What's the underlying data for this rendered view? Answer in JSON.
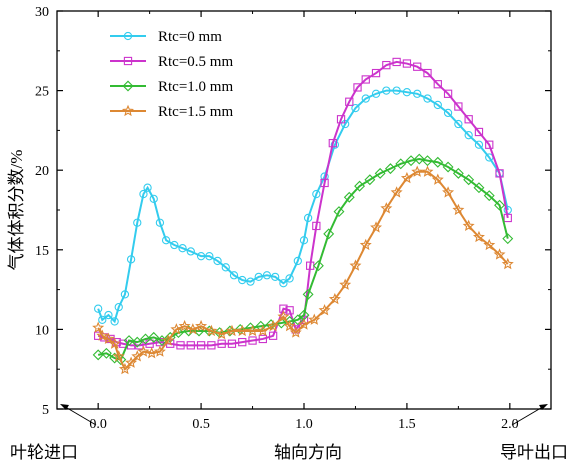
{
  "chart_data": {
    "type": "line",
    "ylabel": "气体体积分数/%",
    "xlabel": "轴向方向",
    "x_left_annotation": "叶轮进口",
    "x_right_annotation": "导叶出口",
    "xlim": [
      -0.2,
      2.2
    ],
    "ylim": [
      5,
      30
    ],
    "xticks": [
      "0.0",
      "0.5",
      "1.0",
      "1.5",
      "2.0"
    ],
    "yticks": [
      "5",
      "10",
      "15",
      "20",
      "25",
      "30"
    ],
    "grid": false,
    "legend_position": "top-left",
    "series": [
      {
        "name": "Rtc=0 mm",
        "color": "#33ccee",
        "marker": "circle",
        "points": [
          [
            0.0,
            11.3
          ],
          [
            0.02,
            10.6
          ],
          [
            0.05,
            10.9
          ],
          [
            0.08,
            10.5
          ],
          [
            0.1,
            11.4
          ],
          [
            0.13,
            12.2
          ],
          [
            0.16,
            14.4
          ],
          [
            0.19,
            16.7
          ],
          [
            0.22,
            18.5
          ],
          [
            0.24,
            18.9
          ],
          [
            0.27,
            18.2
          ],
          [
            0.3,
            16.7
          ],
          [
            0.33,
            15.6
          ],
          [
            0.37,
            15.3
          ],
          [
            0.41,
            15.1
          ],
          [
            0.45,
            14.9
          ],
          [
            0.5,
            14.6
          ],
          [
            0.54,
            14.6
          ],
          [
            0.58,
            14.3
          ],
          [
            0.62,
            13.9
          ],
          [
            0.66,
            13.4
          ],
          [
            0.7,
            13.1
          ],
          [
            0.74,
            13.0
          ],
          [
            0.78,
            13.3
          ],
          [
            0.82,
            13.4
          ],
          [
            0.86,
            13.3
          ],
          [
            0.9,
            12.9
          ],
          [
            0.93,
            13.2
          ],
          [
            0.97,
            14.3
          ],
          [
            1.0,
            15.6
          ],
          [
            1.02,
            17.0
          ],
          [
            1.06,
            18.5
          ],
          [
            1.1,
            19.6
          ],
          [
            1.15,
            21.6
          ],
          [
            1.2,
            22.9
          ],
          [
            1.25,
            23.9
          ],
          [
            1.3,
            24.5
          ],
          [
            1.35,
            24.8
          ],
          [
            1.4,
            25.0
          ],
          [
            1.45,
            25.0
          ],
          [
            1.5,
            24.9
          ],
          [
            1.55,
            24.8
          ],
          [
            1.6,
            24.5
          ],
          [
            1.65,
            24.1
          ],
          [
            1.7,
            23.6
          ],
          [
            1.75,
            22.9
          ],
          [
            1.8,
            22.2
          ],
          [
            1.85,
            21.6
          ],
          [
            1.9,
            20.8
          ],
          [
            1.95,
            19.8
          ],
          [
            1.99,
            17.5
          ]
        ]
      },
      {
        "name": "Rtc=0.5 mm",
        "color": "#cc33cc",
        "marker": "square",
        "points": [
          [
            0.0,
            9.6
          ],
          [
            0.03,
            9.5
          ],
          [
            0.06,
            9.4
          ],
          [
            0.09,
            9.2
          ],
          [
            0.12,
            9.1
          ],
          [
            0.16,
            9.0
          ],
          [
            0.2,
            9.0
          ],
          [
            0.25,
            9.1
          ],
          [
            0.3,
            9.2
          ],
          [
            0.35,
            9.1
          ],
          [
            0.4,
            9.0
          ],
          [
            0.45,
            9.0
          ],
          [
            0.5,
            9.0
          ],
          [
            0.55,
            9.0
          ],
          [
            0.6,
            9.1
          ],
          [
            0.65,
            9.1
          ],
          [
            0.7,
            9.2
          ],
          [
            0.75,
            9.3
          ],
          [
            0.8,
            9.4
          ],
          [
            0.85,
            9.6
          ],
          [
            0.9,
            11.3
          ],
          [
            0.93,
            11.2
          ],
          [
            0.96,
            10.0
          ],
          [
            1.0,
            10.6
          ],
          [
            1.03,
            14.0
          ],
          [
            1.06,
            16.5
          ],
          [
            1.1,
            19.2
          ],
          [
            1.14,
            21.7
          ],
          [
            1.18,
            23.2
          ],
          [
            1.22,
            24.3
          ],
          [
            1.26,
            25.2
          ],
          [
            1.3,
            25.7
          ],
          [
            1.35,
            26.1
          ],
          [
            1.4,
            26.6
          ],
          [
            1.45,
            26.8
          ],
          [
            1.5,
            26.7
          ],
          [
            1.55,
            26.5
          ],
          [
            1.6,
            26.1
          ],
          [
            1.65,
            25.4
          ],
          [
            1.7,
            24.8
          ],
          [
            1.75,
            24.0
          ],
          [
            1.8,
            23.2
          ],
          [
            1.85,
            22.4
          ],
          [
            1.9,
            21.6
          ],
          [
            1.95,
            19.8
          ],
          [
            1.99,
            17.0
          ]
        ]
      },
      {
        "name": "Rtc=1.0 mm",
        "color": "#33bb33",
        "marker": "diamond",
        "points": [
          [
            0.0,
            8.4
          ],
          [
            0.04,
            8.5
          ],
          [
            0.08,
            8.2
          ],
          [
            0.11,
            8.1
          ],
          [
            0.15,
            9.3
          ],
          [
            0.19,
            9.2
          ],
          [
            0.23,
            9.4
          ],
          [
            0.27,
            9.5
          ],
          [
            0.31,
            9.3
          ],
          [
            0.35,
            9.5
          ],
          [
            0.39,
            9.8
          ],
          [
            0.44,
            9.9
          ],
          [
            0.49,
            9.9
          ],
          [
            0.54,
            9.9
          ],
          [
            0.59,
            9.8
          ],
          [
            0.64,
            9.9
          ],
          [
            0.69,
            10.0
          ],
          [
            0.74,
            10.1
          ],
          [
            0.79,
            10.2
          ],
          [
            0.84,
            10.3
          ],
          [
            0.89,
            10.4
          ],
          [
            0.93,
            10.5
          ],
          [
            0.97,
            10.6
          ],
          [
            1.0,
            10.9
          ],
          [
            1.02,
            12.2
          ],
          [
            1.07,
            14.0
          ],
          [
            1.12,
            16.0
          ],
          [
            1.17,
            17.4
          ],
          [
            1.22,
            18.3
          ],
          [
            1.27,
            19.0
          ],
          [
            1.32,
            19.4
          ],
          [
            1.37,
            19.8
          ],
          [
            1.42,
            20.1
          ],
          [
            1.47,
            20.4
          ],
          [
            1.52,
            20.6
          ],
          [
            1.56,
            20.7
          ],
          [
            1.6,
            20.6
          ],
          [
            1.65,
            20.5
          ],
          [
            1.7,
            20.2
          ],
          [
            1.75,
            19.8
          ],
          [
            1.8,
            19.4
          ],
          [
            1.85,
            18.9
          ],
          [
            1.9,
            18.4
          ],
          [
            1.95,
            17.8
          ],
          [
            1.99,
            15.7
          ]
        ]
      },
      {
        "name": "Rtc=1.5 mm",
        "color": "#dd8833",
        "marker": "star",
        "points": [
          [
            0.0,
            10.1
          ],
          [
            0.02,
            9.6
          ],
          [
            0.05,
            9.4
          ],
          [
            0.08,
            9.1
          ],
          [
            0.1,
            8.3
          ],
          [
            0.13,
            7.5
          ],
          [
            0.16,
            7.9
          ],
          [
            0.19,
            8.3
          ],
          [
            0.22,
            8.6
          ],
          [
            0.26,
            8.5
          ],
          [
            0.3,
            8.6
          ],
          [
            0.34,
            9.3
          ],
          [
            0.38,
            10.0
          ],
          [
            0.42,
            10.2
          ],
          [
            0.46,
            10.0
          ],
          [
            0.5,
            10.2
          ],
          [
            0.55,
            9.9
          ],
          [
            0.6,
            9.7
          ],
          [
            0.65,
            9.9
          ],
          [
            0.7,
            9.9
          ],
          [
            0.75,
            9.9
          ],
          [
            0.8,
            9.9
          ],
          [
            0.85,
            10.2
          ],
          [
            0.9,
            10.8
          ],
          [
            0.93,
            10.2
          ],
          [
            0.96,
            9.8
          ],
          [
            1.0,
            10.3
          ],
          [
            1.05,
            10.6
          ],
          [
            1.1,
            11.2
          ],
          [
            1.15,
            11.9
          ],
          [
            1.2,
            12.8
          ],
          [
            1.25,
            14.0
          ],
          [
            1.3,
            15.3
          ],
          [
            1.35,
            16.4
          ],
          [
            1.4,
            17.6
          ],
          [
            1.45,
            18.6
          ],
          [
            1.5,
            19.5
          ],
          [
            1.55,
            19.9
          ],
          [
            1.6,
            19.9
          ],
          [
            1.65,
            19.4
          ],
          [
            1.7,
            18.6
          ],
          [
            1.75,
            17.5
          ],
          [
            1.8,
            16.5
          ],
          [
            1.85,
            15.8
          ],
          [
            1.9,
            15.3
          ],
          [
            1.95,
            14.7
          ],
          [
            1.99,
            14.1
          ]
        ]
      }
    ]
  }
}
